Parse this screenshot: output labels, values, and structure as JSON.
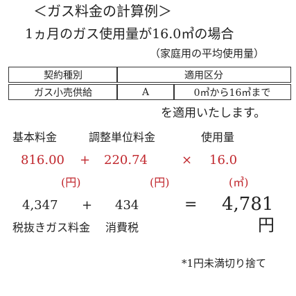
{
  "header": {
    "title": "＜ガス料金の計算例＞",
    "subtitle": "1ヵ月のガス使用量が16.0㎥の場合",
    "note": "（家庭用の平均使用量）"
  },
  "table": {
    "header": [
      "契約種別",
      "適用区分"
    ],
    "rows": [
      [
        "ガス小売供給",
        "A",
        "0㎥から16㎥まで"
      ]
    ]
  },
  "applies": "を適用いたします。",
  "formula": {
    "labels": [
      "基本料金",
      "調整単位料金",
      "使用量"
    ],
    "values": [
      "816.00",
      "+",
      "220.74",
      "×",
      "16.0"
    ],
    "units": [
      "(円)",
      "(円)",
      "(㎥)"
    ],
    "result": [
      "4,347",
      "+",
      "434",
      "=",
      "4,781"
    ],
    "result_labels": [
      "税抜きガス料金",
      "消費税"
    ],
    "result_unit": "円"
  },
  "footnote": "*1円未満切り捨て"
}
